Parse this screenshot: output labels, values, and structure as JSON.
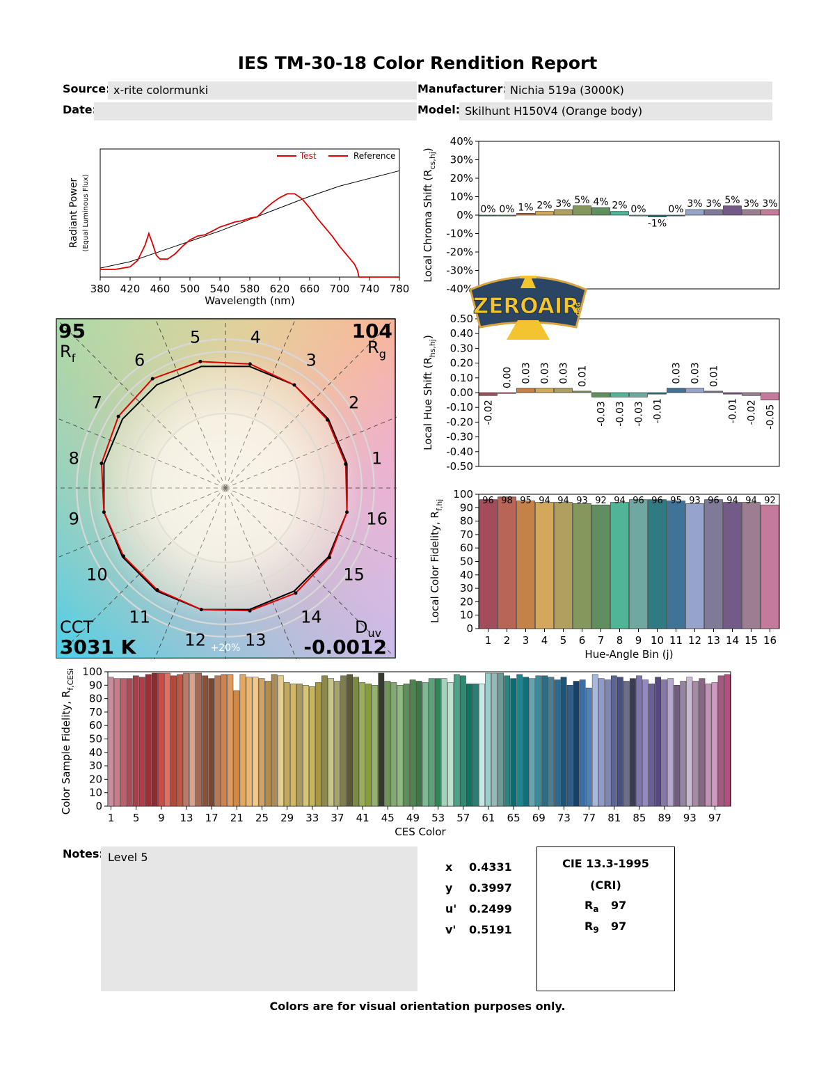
{
  "report": {
    "title": "IES TM-30-18 Color Rendition Report",
    "source_label": "Source:",
    "source_value": "x-rite colormunki",
    "manufacturer_label": "Manufacturer:",
    "manufacturer_value": "Nichia 519a (3000K)",
    "date_label": "Date:",
    "date_value": "",
    "model_label": "Model:",
    "model_value": "Skilhunt H150V4 (Orange body)",
    "notes_label": "Notes:",
    "notes_value": "Level 5",
    "footer": "Colors are for visual orientation purposes only."
  },
  "chromaticity": [
    {
      "label": "x",
      "value": "0.4331"
    },
    {
      "label": "y",
      "value": "0.3997"
    },
    {
      "label": "u'",
      "value": "0.2499"
    },
    {
      "label": "v'",
      "value": "0.5191"
    }
  ],
  "cri": {
    "title1": "CIE 13.3-1995",
    "title2": "(CRI)",
    "ra_label": "R",
    "ra_sub": "a",
    "ra_value": "97",
    "r9_label": "R",
    "r9_sub": "9",
    "r9_value": "97"
  },
  "logo": {
    "text": "ZEROAIR",
    "small": "ORG",
    "bg": "#2b4565",
    "accent": "#f4c430",
    "border": "#d9a441"
  },
  "colors": {
    "test": "#e00000",
    "reference": "#000000",
    "field": "#e6e6e6"
  },
  "chart_data": [
    {
      "id": "spd",
      "type": "line",
      "xlabel": "Wavelength (nm)",
      "ylabel": "Radiant Power",
      "ylabel_sub": "(Equal Luminous Flux)",
      "xlim": [
        380,
        780
      ],
      "xticks": [
        380,
        420,
        460,
        500,
        540,
        580,
        620,
        660,
        700,
        740,
        780
      ],
      "ylim": [
        0,
        1
      ],
      "legend": [
        "Test",
        "Reference"
      ],
      "legend_position": "top-right",
      "series": [
        {
          "name": "Test",
          "color": "#e00000",
          "x": [
            380,
            400,
            420,
            430,
            440,
            445,
            450,
            455,
            460,
            470,
            480,
            490,
            500,
            510,
            520,
            530,
            540,
            550,
            560,
            570,
            580,
            590,
            600,
            610,
            620,
            630,
            640,
            650,
            660,
            670,
            680,
            690,
            700,
            710,
            720,
            724,
            726,
            740,
            780
          ],
          "y": [
            0.06,
            0.06,
            0.08,
            0.13,
            0.25,
            0.34,
            0.26,
            0.17,
            0.14,
            0.14,
            0.18,
            0.24,
            0.29,
            0.32,
            0.33,
            0.36,
            0.39,
            0.41,
            0.43,
            0.44,
            0.46,
            0.47,
            0.53,
            0.58,
            0.62,
            0.65,
            0.65,
            0.61,
            0.54,
            0.46,
            0.39,
            0.32,
            0.24,
            0.17,
            0.1,
            0.05,
            0.0,
            0.0,
            0.0
          ]
        },
        {
          "name": "Reference",
          "color": "#000000",
          "x": [
            380,
            420,
            460,
            500,
            540,
            580,
            620,
            660,
            700,
            740,
            780
          ],
          "y": [
            0.07,
            0.12,
            0.2,
            0.28,
            0.36,
            0.45,
            0.54,
            0.63,
            0.71,
            0.77,
            0.83
          ]
        }
      ]
    },
    {
      "id": "chroma_shift",
      "type": "bar",
      "ylabel": "Local Chroma Shift (R",
      "ylabel_sub": "cs,hj",
      "ylim": [
        -40,
        40
      ],
      "yticks": [
        -40,
        -30,
        -20,
        -10,
        0,
        10,
        20,
        30,
        40
      ],
      "ytick_labels": [
        "-40%",
        "-30%",
        "-20%",
        "-10%",
        "0%",
        "10%",
        "20%",
        "30%",
        "40%"
      ],
      "categories": [
        "1",
        "2",
        "3",
        "4",
        "5",
        "6",
        "7",
        "8",
        "9",
        "10",
        "11",
        "12",
        "13",
        "14",
        "15",
        "16"
      ],
      "values": [
        0,
        0,
        1,
        2,
        3,
        5,
        4,
        2,
        0,
        -1,
        0,
        3,
        3,
        5,
        3,
        3
      ],
      "labels": [
        "0%",
        "0%",
        "1%",
        "2%",
        "3%",
        "5%",
        "4%",
        "2%",
        "0%",
        "-1%",
        "0%",
        "3%",
        "3%",
        "5%",
        "3%",
        "3%"
      ]
    },
    {
      "id": "hue_shift",
      "type": "bar",
      "ylabel": "Local Hue Shift (R",
      "ylabel_sub": "hs,hj",
      "ylim": [
        -0.5,
        0.5
      ],
      "yticks": [
        -0.5,
        -0.4,
        -0.3,
        -0.2,
        -0.1,
        0,
        0.1,
        0.2,
        0.3,
        0.4,
        0.5
      ],
      "ytick_labels": [
        "-0.50",
        "-0.40",
        "-0.30",
        "-0.20",
        "-0.10",
        "0.00",
        "0.10",
        "0.20",
        "0.30",
        "0.40",
        "0.50"
      ],
      "categories": [
        "1",
        "2",
        "3",
        "4",
        "5",
        "6",
        "7",
        "8",
        "9",
        "10",
        "11",
        "12",
        "13",
        "14",
        "15",
        "16"
      ],
      "values": [
        -0.02,
        0.0,
        0.03,
        0.03,
        0.03,
        0.01,
        -0.03,
        -0.03,
        -0.03,
        -0.01,
        0.03,
        0.03,
        0.01,
        -0.01,
        -0.02,
        -0.05
      ],
      "labels": [
        "-0.02",
        "0.00",
        "0.03",
        "0.03",
        "0.03",
        "0.01",
        "-0.03",
        "-0.03",
        "-0.03",
        "-0.01",
        "0.03",
        "0.03",
        "0.01",
        "-0.01",
        "-0.02",
        "-0.05"
      ]
    },
    {
      "id": "local_fidelity",
      "type": "bar",
      "xlabel": "Hue-Angle Bin (j)",
      "ylabel": "Local Color Fidelity, R",
      "ylabel_sub": "f,hj",
      "ylim": [
        0,
        100
      ],
      "yticks": [
        0,
        10,
        20,
        30,
        40,
        50,
        60,
        70,
        80,
        90,
        100
      ],
      "categories": [
        "1",
        "2",
        "3",
        "4",
        "5",
        "6",
        "7",
        "8",
        "9",
        "10",
        "11",
        "12",
        "13",
        "14",
        "15",
        "16"
      ],
      "values": [
        96,
        98,
        95,
        94,
        94,
        93,
        92,
        94,
        96,
        96,
        95,
        93,
        96,
        94,
        94,
        92
      ]
    },
    {
      "id": "ces_fidelity",
      "type": "bar",
      "xlabel": "CES Color",
      "ylabel": "Color Sample Fidelity, R",
      "ylabel_sub": "f,CESi",
      "ylim": [
        0,
        100
      ],
      "yticks": [
        0,
        10,
        20,
        30,
        40,
        50,
        60,
        70,
        80,
        90,
        100
      ],
      "xtick_labels": [
        "1",
        "5",
        "9",
        "13",
        "17",
        "21",
        "25",
        "29",
        "33",
        "37",
        "41",
        "45",
        "49",
        "53",
        "57",
        "61",
        "65",
        "69",
        "73",
        "77",
        "81",
        "85",
        "89",
        "93",
        "97"
      ],
      "values": [
        96,
        95,
        95,
        95,
        97,
        96,
        98,
        99,
        99,
        99,
        97,
        98,
        99,
        99,
        99,
        97,
        95,
        97,
        98,
        98,
        86,
        98,
        96,
        96,
        95,
        93,
        98,
        97,
        92,
        91,
        91,
        90,
        89,
        92,
        97,
        95,
        93,
        97,
        98,
        96,
        92,
        91,
        90,
        99,
        93,
        92,
        90,
        91,
        94,
        93,
        92,
        95,
        95,
        95,
        92,
        98,
        97,
        91,
        91,
        91,
        99,
        99,
        99,
        97,
        95,
        98,
        96,
        95,
        97,
        97,
        96,
        94,
        96,
        90,
        93,
        94,
        88,
        98,
        95,
        94,
        97,
        96,
        93,
        95,
        97,
        94,
        91,
        96,
        94,
        95,
        90,
        93,
        96,
        93,
        95,
        91,
        92,
        97,
        98
      ],
      "colors": [
        "#c98d9d",
        "#c97c8a",
        "#b8606c",
        "#a94b59",
        "#a63e4c",
        "#b23d46",
        "#9b2e36",
        "#8d2b2e",
        "#c94d4a",
        "#e36f63",
        "#b4483a",
        "#c0573f",
        "#b77b6a",
        "#d9a28d",
        "#a36a55",
        "#8a5138",
        "#764733",
        "#b77954",
        "#c98452",
        "#e29a5c",
        "#d08a46",
        "#e3a85f",
        "#e8b874",
        "#f3c98c",
        "#cfa267",
        "#b48b4d",
        "#a98c5a",
        "#e5cd8e",
        "#c1a95a",
        "#d2b662",
        "#a79a5c",
        "#d6c579",
        "#c7b55a",
        "#a8983e",
        "#8e8945",
        "#c7c68a",
        "#a5a36b",
        "#7e7d50",
        "#5a5a37",
        "#7a8a42",
        "#9cae55",
        "#879c3d",
        "#93b26b",
        "#333b2d",
        "#6f9558",
        "#82a873",
        "#8fbb7d",
        "#5f8e5a",
        "#4e8450",
        "#3f7548",
        "#7fb894",
        "#5aa27a",
        "#2f8656",
        "#a0d4bb",
        "#bde1cf",
        "#4aa386",
        "#2e8b72",
        "#0f7462",
        "#2a7e74",
        "#c7e7e2",
        "#9bcfcb",
        "#95b9b6",
        "#6d9996",
        "#2c827e",
        "#0d6c6e",
        "#1a8794",
        "#106f7a",
        "#64a5b3",
        "#3b8b9b",
        "#2a6e83",
        "#4f7d8e",
        "#2f6b8f",
        "#1b5577",
        "#2d5e8a",
        "#14406a",
        "#3b6fa7",
        "#4d81b8",
        "#a8b8dc",
        "#8e9ccc",
        "#8086b3",
        "#5e6699",
        "#4a5082",
        "#6c6f8a",
        "#3a3c55",
        "#7f76ae",
        "#9589c2",
        "#6b5d96",
        "#584a80",
        "#8878a8",
        "#b6a5cd",
        "#725c83",
        "#96859f",
        "#c9b9d2",
        "#a68aa6",
        "#8a6584",
        "#bf94b5",
        "#d09ac2",
        "#a55880",
        "#b64d7e"
      ]
    }
  ],
  "vector_graphic": {
    "rf_value": "95",
    "rf_label": "R",
    "rf_sub": "f",
    "rg_value": "104",
    "rg_label": "R",
    "rg_sub": "g",
    "cct_label": "CCT",
    "cct_value": "3031 K",
    "duv_label": "D",
    "duv_sub": "uv",
    "duv_value": "-0.0012",
    "bins": [
      "1",
      "2",
      "3",
      "4",
      "5",
      "6",
      "7",
      "8",
      "9",
      "10",
      "11",
      "12",
      "13",
      "14",
      "15",
      "16"
    ],
    "ring_label": "+20%",
    "test_radial": [
      0.99,
      0.99,
      1.0,
      1.02,
      1.04,
      1.06,
      1.04,
      1.02,
      1.0,
      0.99,
      0.99,
      1.0,
      1.01,
      1.02,
      1.01,
      1.0
    ]
  }
}
